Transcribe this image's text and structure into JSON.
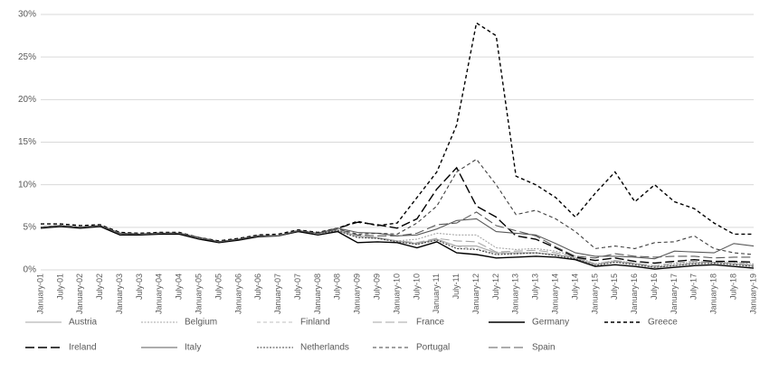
{
  "chart_data": {
    "type": "line",
    "categories": [
      "January-01",
      "July-01",
      "January-02",
      "July-02",
      "January-03",
      "July-03",
      "January-04",
      "July-04",
      "January-05",
      "July-05",
      "January-06",
      "July-06",
      "January-07",
      "July-07",
      "January-08",
      "July-08",
      "January-09",
      "July-09",
      "January-10",
      "July-10",
      "January-11",
      "July-11",
      "January-12",
      "July-12",
      "January-13",
      "July-13",
      "January-14",
      "July-14",
      "January-15",
      "July-15",
      "January-16",
      "July-16",
      "January-17",
      "July-17",
      "January-18",
      "July-18",
      "January-19"
    ],
    "ylim": [
      0,
      30
    ],
    "yticks": [
      {
        "value": 0,
        "label": "0%"
      },
      {
        "value": 5,
        "label": "5%"
      },
      {
        "value": 10,
        "label": "10%"
      },
      {
        "value": 15,
        "label": "15%"
      },
      {
        "value": 20,
        "label": "20%"
      },
      {
        "value": 25,
        "label": "25%"
      },
      {
        "value": 30,
        "label": "30%"
      }
    ],
    "grid": true,
    "legend": "bottom",
    "series": [
      {
        "name": "Austria",
        "color": "#a6a6a6",
        "dash": "solid",
        "values": [
          5.0,
          5.2,
          5.0,
          5.2,
          4.3,
          4.2,
          4.3,
          4.3,
          3.8,
          3.3,
          3.6,
          4.0,
          4.0,
          4.6,
          4.3,
          4.6,
          4.0,
          3.8,
          3.4,
          3.1,
          3.6,
          2.8,
          2.8,
          2.0,
          2.0,
          2.0,
          1.8,
          1.4,
          0.6,
          1.0,
          0.7,
          0.3,
          0.5,
          0.8,
          0.9,
          0.7,
          0.5
        ]
      },
      {
        "name": "Belgium",
        "color": "#a6a6a6",
        "dash": "dotted",
        "values": [
          5.0,
          5.2,
          5.0,
          5.2,
          4.3,
          4.2,
          4.3,
          4.3,
          3.8,
          3.3,
          3.6,
          4.0,
          4.0,
          4.6,
          4.3,
          4.7,
          4.0,
          3.8,
          3.4,
          3.6,
          4.3,
          4.1,
          4.1,
          2.6,
          2.4,
          2.5,
          2.2,
          1.6,
          0.7,
          1.1,
          0.8,
          0.4,
          0.7,
          0.9,
          0.9,
          0.9,
          0.7
        ]
      },
      {
        "name": "Finland",
        "color": "#bfbfbf",
        "dash": "dashed",
        "values": [
          5.0,
          5.2,
          5.0,
          5.2,
          4.3,
          4.2,
          4.3,
          4.3,
          3.8,
          3.3,
          3.6,
          4.0,
          4.0,
          4.6,
          4.3,
          4.6,
          3.9,
          3.7,
          3.3,
          3.0,
          3.5,
          2.7,
          2.5,
          1.9,
          1.9,
          2.0,
          1.8,
          1.3,
          0.6,
          1.0,
          0.7,
          0.3,
          0.5,
          0.8,
          0.8,
          0.8,
          0.6
        ]
      },
      {
        "name": "France",
        "color": "#a6a6a6",
        "dash": "longdash",
        "values": [
          5.0,
          5.2,
          5.0,
          5.2,
          4.3,
          4.2,
          4.3,
          4.3,
          3.8,
          3.3,
          3.6,
          4.0,
          4.0,
          4.6,
          4.3,
          4.6,
          4.0,
          3.7,
          3.4,
          3.2,
          3.7,
          3.4,
          3.3,
          2.1,
          2.2,
          2.3,
          2.0,
          1.5,
          0.7,
          1.1,
          0.8,
          0.5,
          0.8,
          1.0,
          0.9,
          0.9,
          0.6
        ]
      },
      {
        "name": "Germany",
        "color": "#000000",
        "dash": "solid",
        "values": [
          4.9,
          5.1,
          4.9,
          5.1,
          4.1,
          4.1,
          4.2,
          4.2,
          3.6,
          3.2,
          3.5,
          3.9,
          4.0,
          4.5,
          4.1,
          4.5,
          3.2,
          3.3,
          3.2,
          2.6,
          3.3,
          2.0,
          1.8,
          1.4,
          1.5,
          1.6,
          1.5,
          1.2,
          0.4,
          0.6,
          0.4,
          0.1,
          0.3,
          0.5,
          0.6,
          0.4,
          0.2
        ]
      },
      {
        "name": "Greece",
        "color": "#000000",
        "dash": "dashed",
        "values": [
          5.4,
          5.4,
          5.2,
          5.3,
          4.4,
          4.3,
          4.4,
          4.4,
          3.8,
          3.4,
          3.7,
          4.1,
          4.2,
          4.7,
          4.4,
          4.9,
          5.7,
          5.2,
          5.5,
          8.5,
          11.5,
          17.0,
          29.0,
          27.5,
          11.0,
          10.0,
          8.5,
          6.2,
          9.0,
          11.5,
          8.0,
          10.0,
          8.0,
          7.2,
          5.5,
          4.2,
          4.2
        ]
      },
      {
        "name": "Ireland",
        "color": "#000000",
        "dash": "longdash",
        "values": [
          5.0,
          5.2,
          5.0,
          5.2,
          4.3,
          4.2,
          4.3,
          4.3,
          3.8,
          3.3,
          3.6,
          4.0,
          4.0,
          4.6,
          4.3,
          4.9,
          5.6,
          5.3,
          4.9,
          6.0,
          9.5,
          12.0,
          7.5,
          6.2,
          4.0,
          3.6,
          2.6,
          1.5,
          1.1,
          1.4,
          1.0,
          0.8,
          1.0,
          1.2,
          1.0,
          1.0,
          0.9
        ]
      },
      {
        "name": "Italy",
        "color": "#595959",
        "dash": "solid",
        "values": [
          5.0,
          5.2,
          5.0,
          5.2,
          4.3,
          4.2,
          4.3,
          4.3,
          3.8,
          3.3,
          3.6,
          4.0,
          4.0,
          4.6,
          4.3,
          4.9,
          4.4,
          4.3,
          4.0,
          4.1,
          4.8,
          5.8,
          6.0,
          4.5,
          4.3,
          4.1,
          3.1,
          2.0,
          1.6,
          1.6,
          1.5,
          1.3,
          2.2,
          2.1,
          2.0,
          3.1,
          2.8
        ]
      },
      {
        "name": "Netherlands",
        "color": "#404040",
        "dash": "dotted",
        "values": [
          5.0,
          5.2,
          5.0,
          5.2,
          4.3,
          4.2,
          4.3,
          4.3,
          3.8,
          3.3,
          3.6,
          4.0,
          4.0,
          4.6,
          4.3,
          4.6,
          3.8,
          3.7,
          3.3,
          3.0,
          3.5,
          2.5,
          2.4,
          1.8,
          1.9,
          2.0,
          1.7,
          1.3,
          0.5,
          0.9,
          0.6,
          0.3,
          0.5,
          0.7,
          0.8,
          0.6,
          0.4
        ]
      },
      {
        "name": "Portugal",
        "color": "#404040",
        "dash": "dashed",
        "values": [
          5.0,
          5.2,
          5.0,
          5.2,
          4.3,
          4.2,
          4.3,
          4.3,
          3.8,
          3.3,
          3.6,
          4.0,
          4.0,
          4.6,
          4.3,
          4.8,
          4.2,
          4.3,
          4.2,
          5.5,
          7.5,
          11.5,
          13.0,
          10.0,
          6.5,
          7.0,
          6.0,
          4.5,
          2.5,
          2.8,
          2.5,
          3.2,
          3.3,
          4.0,
          2.5,
          2.0,
          1.8
        ]
      },
      {
        "name": "Spain",
        "color": "#595959",
        "dash": "longdash",
        "values": [
          5.0,
          5.2,
          5.0,
          5.2,
          4.3,
          4.2,
          4.3,
          4.3,
          3.8,
          3.3,
          3.6,
          4.0,
          4.0,
          4.6,
          4.3,
          4.8,
          4.1,
          4.0,
          4.0,
          4.3,
          5.3,
          5.5,
          6.8,
          5.2,
          4.6,
          4.0,
          2.7,
          1.6,
          1.4,
          1.9,
          1.6,
          1.5,
          1.6,
          1.6,
          1.4,
          1.5,
          1.5
        ]
      }
    ]
  }
}
